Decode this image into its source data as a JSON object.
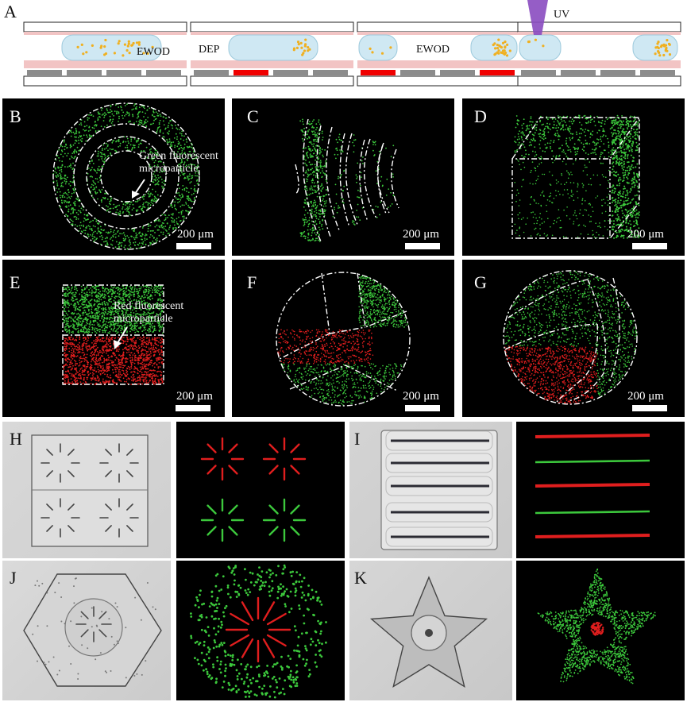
{
  "panels": {
    "A": "A",
    "B": "B",
    "C": "C",
    "D": "D",
    "E": "E",
    "F": "F",
    "G": "G",
    "H": "H",
    "I": "I",
    "J": "J",
    "K": "K"
  },
  "diagram": {
    "step1": "EWOD",
    "step2": "DEP",
    "step3": "EWOD",
    "step4": "UV"
  },
  "scale_bar": "200 μm",
  "annotations": {
    "green": "Green fluorescent microparticle",
    "green_line1": "Green fluorescent",
    "green_line2": "microparticle",
    "red_line1": "Red fluorescent",
    "red_line2": "microparticle"
  },
  "colors": {
    "green": "#3cc83c",
    "red": "#e01e1e",
    "particle": "#f0b020",
    "droplet": "#cfe8f3",
    "electrode_on": "#f00000",
    "electrode_off": "#8c8c8c",
    "uv": "#8a4bc0"
  }
}
